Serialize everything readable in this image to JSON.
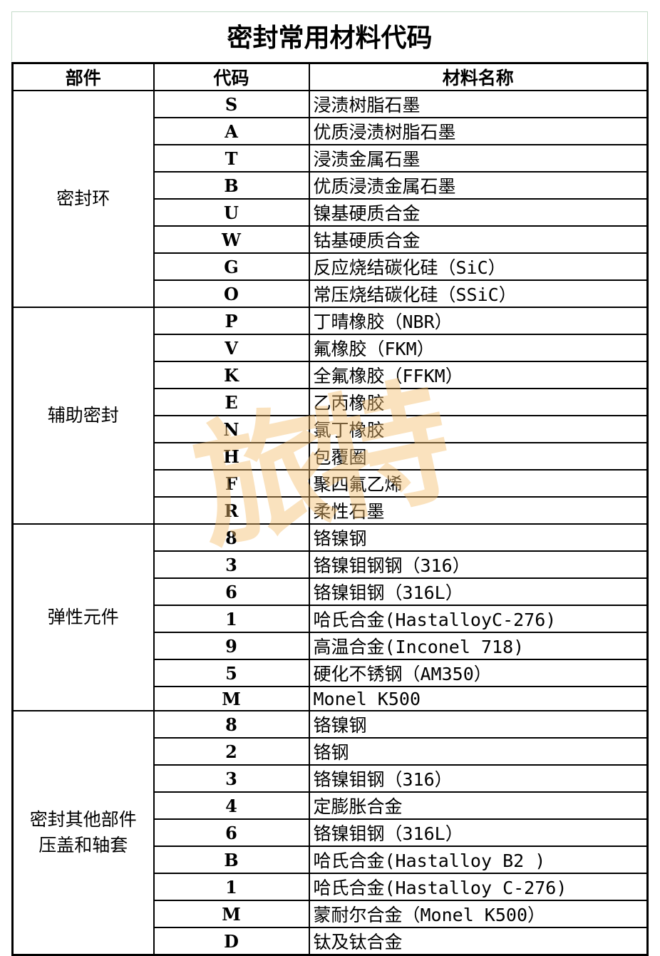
{
  "title": "密封常用材料代码",
  "headers": {
    "part": "部件",
    "code": "代码",
    "name": "材料名称"
  },
  "groups": [
    {
      "part": "密封环",
      "rows": [
        {
          "code": "S",
          "name": "浸渍树脂石墨"
        },
        {
          "code": "A",
          "name": "优质浸渍树脂石墨"
        },
        {
          "code": "T",
          "name": "浸渍金属石墨"
        },
        {
          "code": "B",
          "name": "优质浸渍金属石墨"
        },
        {
          "code": "U",
          "name": "镍基硬质合金"
        },
        {
          "code": "W",
          "name": "钴基硬质合金"
        },
        {
          "code": "G",
          "name": "反应烧结碳化硅（SiC）"
        },
        {
          "code": "O",
          "name": "常压烧结碳化硅（SSiC）"
        }
      ]
    },
    {
      "part": "辅助密封",
      "rows": [
        {
          "code": "P",
          "name": "丁晴橡胶（NBR）"
        },
        {
          "code": "V",
          "name": "氟橡胶（FKM）"
        },
        {
          "code": "K",
          "name": "全氟橡胶（FFKM）"
        },
        {
          "code": "E",
          "name": "乙丙橡胶"
        },
        {
          "code": "N",
          "name": "氯丁橡胶"
        },
        {
          "code": "H",
          "name": "包覆圈"
        },
        {
          "code": "F",
          "name": "聚四氟乙烯"
        },
        {
          "code": "R",
          "name": "柔性石墨"
        }
      ]
    },
    {
      "part": "弹性元件",
      "rows": [
        {
          "code": "8",
          "name": "铬镍钢"
        },
        {
          "code": "3",
          "name": "铬镍钼钢钢（316）"
        },
        {
          "code": "6",
          "name": "铬镍钼钢（316L）"
        },
        {
          "code": "1",
          "name": "哈氏合金(HastalloyC-276)"
        },
        {
          "code": "9",
          "name": "高温合金(Inconel 718)"
        },
        {
          "code": "5",
          "name": "硬化不锈钢（AM350）"
        },
        {
          "code": "M",
          "name": "Monel K500"
        }
      ]
    },
    {
      "part": "密封其他部件\n压盖和轴套",
      "rows": [
        {
          "code": "8",
          "name": "铬镍钢"
        },
        {
          "code": "2",
          "name": "铬钢"
        },
        {
          "code": "3",
          "name": "铬镍钼钢（316）"
        },
        {
          "code": "4",
          "name": "定膨胀合金"
        },
        {
          "code": "6",
          "name": "铬镍钼钢（316L）"
        },
        {
          "code": "B",
          "name": "哈氏合金(Hastalloy B2 )"
        },
        {
          "code": "1",
          "name": "哈氏合金(Hastalloy C-276)"
        },
        {
          "code": "M",
          "name": "蒙耐尔合金（Monel K500）"
        },
        {
          "code": "D",
          "name": "钛及钛合金"
        }
      ]
    }
  ],
  "watermark": "旅特"
}
